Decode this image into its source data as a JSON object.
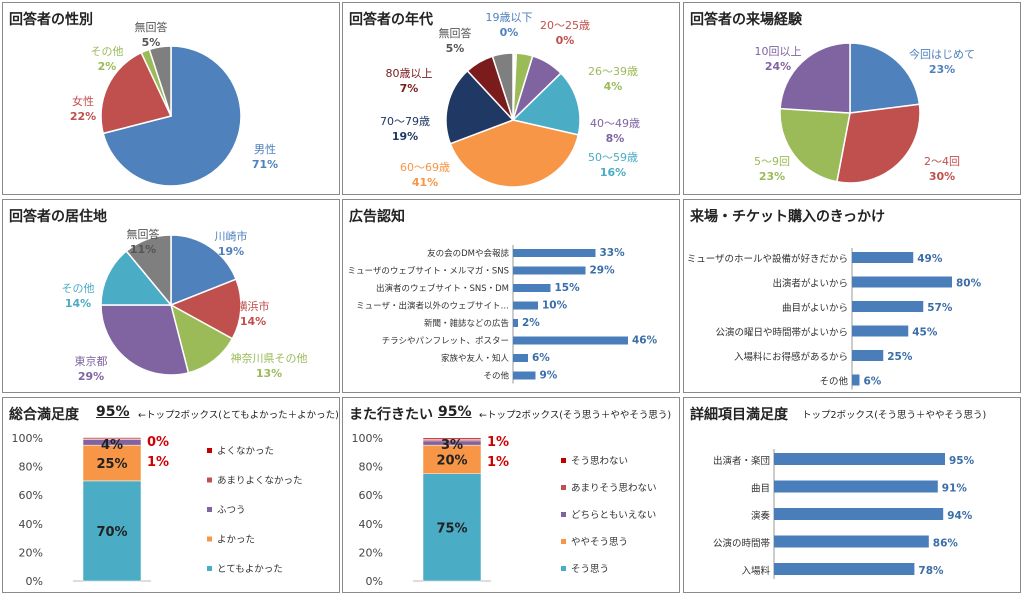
{
  "colors": {
    "blue": "#4f81bd",
    "red": "#c0504d",
    "green": "#9bbb59",
    "purple": "#8064a2",
    "cyan": "#4bacc6",
    "orange": "#f79646",
    "navy": "#1f3864",
    "darkred": "#7b1c1c",
    "gray": "#7f7f7f",
    "bar": "#4a7ebb",
    "accent_red": "#d00000"
  },
  "chart_data": [
    {
      "id": "gender",
      "type": "pie",
      "title": "回答者の性別",
      "slices": [
        {
          "name": "男性",
          "pct": "71%",
          "value": 71,
          "color": "#4f81bd"
        },
        {
          "name": "女性",
          "pct": "22%",
          "value": 22,
          "color": "#c0504d"
        },
        {
          "name": "その他",
          "pct": "2%",
          "value": 2,
          "color": "#9bbb59"
        },
        {
          "name": "無回答",
          "pct": "5%",
          "value": 5,
          "color": "#7f7f7f"
        }
      ]
    },
    {
      "id": "age",
      "type": "pie",
      "title": "回答者の年代",
      "slices": [
        {
          "name": "19歳以下",
          "pct": "0%",
          "value": 0.4,
          "color": "#4f81bd"
        },
        {
          "name": "20～25歳",
          "pct": "0%",
          "value": 0.4,
          "color": "#c0504d"
        },
        {
          "name": "26～39歳",
          "pct": "4%",
          "value": 4,
          "color": "#9bbb59"
        },
        {
          "name": "40～49歳",
          "pct": "8%",
          "value": 8,
          "color": "#8064a2"
        },
        {
          "name": "50～59歳",
          "pct": "16%",
          "value": 16,
          "color": "#4bacc6"
        },
        {
          "name": "60～69歳",
          "pct": "41%",
          "value": 41,
          "color": "#f79646"
        },
        {
          "name": "70～79歳",
          "pct": "19%",
          "value": 19,
          "color": "#1f3864"
        },
        {
          "name": "80歳以上",
          "pct": "7%",
          "value": 7,
          "color": "#7b1c1c"
        },
        {
          "name": "無回答",
          "pct": "5%",
          "value": 5,
          "color": "#7f7f7f"
        }
      ]
    },
    {
      "id": "visits",
      "type": "pie",
      "title": "回答者の来場経験",
      "slices": [
        {
          "name": "今回はじめて",
          "pct": "23%",
          "value": 23,
          "color": "#4f81bd"
        },
        {
          "name": "2～4回",
          "pct": "30%",
          "value": 30,
          "color": "#c0504d"
        },
        {
          "name": "5～9回",
          "pct": "23%",
          "value": 23,
          "color": "#9bbb59"
        },
        {
          "name": "10回以上",
          "pct": "24%",
          "value": 24,
          "color": "#8064a2"
        }
      ]
    },
    {
      "id": "residence",
      "type": "pie",
      "title": "回答者の居住地",
      "slices": [
        {
          "name": "川崎市",
          "pct": "19%",
          "value": 19,
          "color": "#4f81bd"
        },
        {
          "name": "横浜市",
          "pct": "14%",
          "value": 14,
          "color": "#c0504d"
        },
        {
          "name": "神奈川県その他",
          "pct": "13%",
          "value": 13,
          "color": "#9bbb59"
        },
        {
          "name": "東京都",
          "pct": "29%",
          "value": 29,
          "color": "#8064a2"
        },
        {
          "name": "その他",
          "pct": "14%",
          "value": 14,
          "color": "#4bacc6"
        },
        {
          "name": "無回答",
          "pct": "11%",
          "value": 11,
          "color": "#7f7f7f"
        }
      ]
    },
    {
      "id": "ads",
      "type": "bar",
      "title": "広告認知",
      "categories": [
        "友の会のDMや会報誌",
        "ミューザのウェブサイト・メルマガ・SNS",
        "出演者のウェブサイト・SNS・DM",
        "ミューザ・出演者以外のウェブサイト…",
        "新聞・雑誌などの広告",
        "チラシやパンフレット、ポスター",
        "家族や友人・知人",
        "その他"
      ],
      "values": [
        33,
        29,
        15,
        10,
        2,
        46,
        6,
        9
      ],
      "labels": [
        "33%",
        "29%",
        "15%",
        "10%",
        "2%",
        "46%",
        "6%",
        "9%"
      ]
    },
    {
      "id": "reasons",
      "type": "bar",
      "title": "来場・チケット購入のきっかけ",
      "categories": [
        "ミューザのホールや設備が好きだから",
        "出演者がよいから",
        "曲目がよいから",
        "公演の曜日や時間帯がよいから",
        "入場料にお得感があるから",
        "その他"
      ],
      "values": [
        49,
        80,
        57,
        45,
        25,
        6
      ],
      "labels": [
        "49%",
        "80%",
        "57%",
        "45%",
        "25%",
        "6%"
      ]
    },
    {
      "id": "overall",
      "type": "bar",
      "title": "総合満足度",
      "headline": "95%",
      "note": "←トップ2ボックス(とてもよかった＋よかった)",
      "yticks": [
        "0%",
        "20%",
        "40%",
        "60%",
        "80%",
        "100%"
      ],
      "series": [
        {
          "name": "とてもよかった",
          "value": 70,
          "label": "70%",
          "color": "#4bacc6"
        },
        {
          "name": "よかった",
          "value": 25,
          "label": "25%",
          "color": "#f79646"
        },
        {
          "name": "ふつう",
          "value": 4,
          "label": "4%",
          "color": "#8064a2"
        },
        {
          "name": "あまりよくなかった",
          "value": 1,
          "label": "1%",
          "color": "#c0504d"
        },
        {
          "name": "よくなかった",
          "value": 0.3,
          "label": "0%",
          "color": "#c00000"
        }
      ]
    },
    {
      "id": "revisit",
      "type": "bar",
      "title": "また行きたい",
      "headline": "95%",
      "note": "←トップ2ボックス(そう思う＋ややそう思う)",
      "yticks": [
        "0%",
        "20%",
        "40%",
        "60%",
        "80%",
        "100%"
      ],
      "series": [
        {
          "name": "そう思う",
          "value": 75,
          "label": "75%",
          "color": "#4bacc6"
        },
        {
          "name": "ややそう思う",
          "value": 20,
          "label": "20%",
          "color": "#f79646"
        },
        {
          "name": "どちらともいえない",
          "value": 3,
          "label": "3%",
          "color": "#8064a2"
        },
        {
          "name": "あまりそう思わない",
          "value": 1,
          "label": "1%",
          "color": "#c0504d"
        },
        {
          "name": "そう思わない",
          "value": 1,
          "label": "1%",
          "color": "#c00000"
        }
      ]
    },
    {
      "id": "details",
      "type": "bar",
      "title": "詳細項目満足度",
      "note": "トップ2ボックス(そう思う＋ややそう思う)",
      "categories": [
        "出演者・楽団",
        "曲目",
        "演奏",
        "公演の時間帯",
        "入場料"
      ],
      "values": [
        95,
        91,
        94,
        86,
        78
      ],
      "labels": [
        "95%",
        "91%",
        "94%",
        "86%",
        "78%"
      ]
    }
  ]
}
